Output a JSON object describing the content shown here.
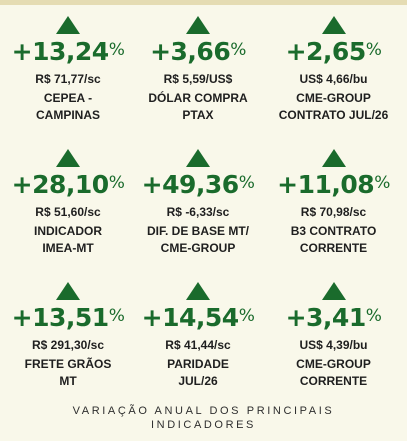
{
  "caption": "VARIAÇÃO ANUAL DOS PRINCIPAIS\nINDICADORES",
  "percent_symbol": "%",
  "indicators": [
    {
      "change": "+13,24",
      "value": "R$ 71,77/sc",
      "label": "CEPEA -\nCAMPINAS"
    },
    {
      "change": "+3,66",
      "value": "R$ 5,59/US$",
      "label": "DÓLAR COMPRA\nPTAX"
    },
    {
      "change": "+2,65",
      "value": "US$ 4,66/bu",
      "label": "CME-GROUP\nCONTRATO JUL/26"
    },
    {
      "change": "+28,10",
      "value": "R$ 51,60/sc",
      "label": "INDICADOR\nIMEA-MT"
    },
    {
      "change": "+49,36",
      "value": "R$ -6,33/sc",
      "label": "DIF. DE BASE MT/\nCME-GROUP"
    },
    {
      "change": "+11,08",
      "value": "R$ 70,98/sc",
      "label": "B3 CONTRATO\nCORRENTE"
    },
    {
      "change": "+13,51",
      "value": "R$ 291,30/sc",
      "label": "FRETE GRÃOS\nMT"
    },
    {
      "change": "+14,54",
      "value": "R$ 41,44/sc",
      "label": "PARIDADE\nJUL/26"
    },
    {
      "change": "+3,41",
      "value": "US$ 4,39/bu",
      "label": "CME-GROUP\nCORRENTE"
    }
  ],
  "colors": {
    "accent": "#1a6b2c",
    "background": "#f9f8ea"
  }
}
